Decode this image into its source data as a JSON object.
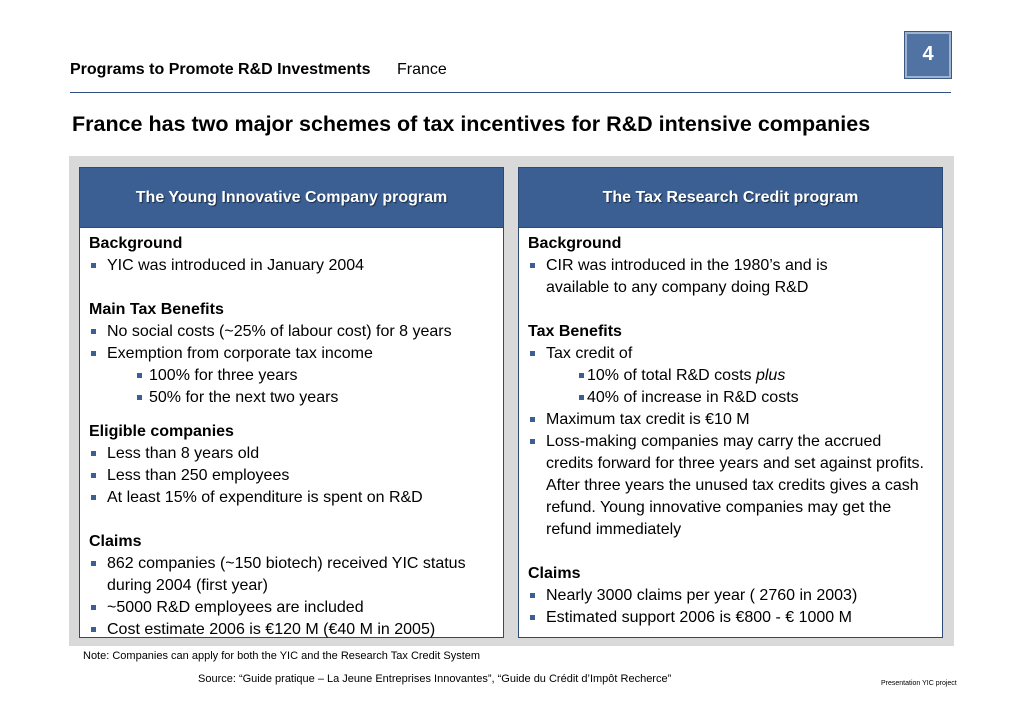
{
  "header": {
    "section": "Programs to Promote R&D Investments",
    "country": "France",
    "page_number": "4"
  },
  "title": "France has two major schemes of tax incentives for R&D intensive companies",
  "left": {
    "heading": "The Young Innovative Company program",
    "background_title": "Background",
    "background": [
      "YIC was introduced in January 2004"
    ],
    "benefits_title": "Main Tax Benefits",
    "benefits": [
      "No social costs (~25% of labour cost) for 8 years",
      "Exemption from corporate tax income"
    ],
    "benefits_sub": [
      "100% for three years",
      "50% for the next two years"
    ],
    "eligible_title": "Eligible companies",
    "eligible": [
      "Less than 8 years old",
      "Less than 250 employees",
      "At least 15% of expenditure is spent on R&D"
    ],
    "claims_title": "Claims",
    "claims": [
      "862 companies (~150 biotech) received YIC status during 2004 (first year)",
      "~5000 R&D employees are included",
      "Cost estimate 2006 is €120 M (€40 M in 2005)"
    ]
  },
  "right": {
    "heading": "The Tax Research Credit program",
    "background_title": "Background",
    "background": [
      "CIR was introduced in the 1980’s and is available to any company doing R&D"
    ],
    "benefits_title": "Tax Benefits",
    "benefit_intro": "Tax credit of",
    "benefit_sub_1": "10% of total R&D costs ",
    "benefit_sub_1_em": "plus",
    "benefit_sub_2": "40% of increase in R&D costs",
    "benefits": [
      "Maximum tax credit is €10 M",
      "Loss-making companies may carry the accrued credits forward for three years and set against profits. After three years the unused tax credits gives a cash refund. Young innovative companies may get the refund immediately"
    ],
    "claims_title": "Claims",
    "claims": [
      "Nearly 3000 claims per year ( 2760 in 2003)",
      "Estimated support 2006 is €800 - € 1000 M"
    ]
  },
  "footer": {
    "note": "Note: Companies can apply for both the YIC and the Research Tax Credit System",
    "source": "Source: “Guide pratique – La Jeune Entreprises Innovantes”, “Guide du Crédit d’Impôt Recherce”",
    "label": "Presentation YIC project"
  },
  "colors": {
    "accent": "#3b5f92",
    "panel": "#d9d9d9",
    "rule": "#2f4f80"
  }
}
